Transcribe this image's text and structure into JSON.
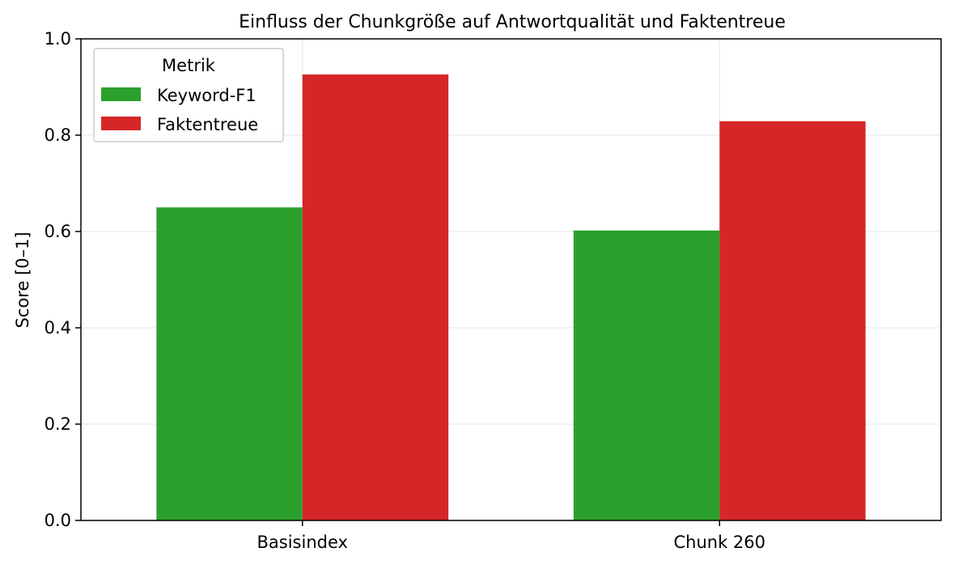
{
  "chart_data": {
    "type": "bar",
    "title": "Einfluss der Chunkgröße auf Antwortqualität und Faktentreue",
    "xlabel": "",
    "ylabel": "Score [0–1]",
    "ylim": [
      0,
      1.0
    ],
    "yticks": [
      "0.0",
      "0.2",
      "0.4",
      "0.6",
      "0.8",
      "1.0"
    ],
    "grid": true,
    "legend_title": "Metrik",
    "legend_position": "top-left",
    "categories": [
      "Basisindex",
      "Chunk 260"
    ],
    "series": [
      {
        "name": "Keyword-F1",
        "color": "#2ca02c",
        "values": [
          0.65,
          0.602
        ]
      },
      {
        "name": "Faktentreue",
        "color": "#d62728",
        "values": [
          0.926,
          0.829
        ]
      }
    ]
  }
}
